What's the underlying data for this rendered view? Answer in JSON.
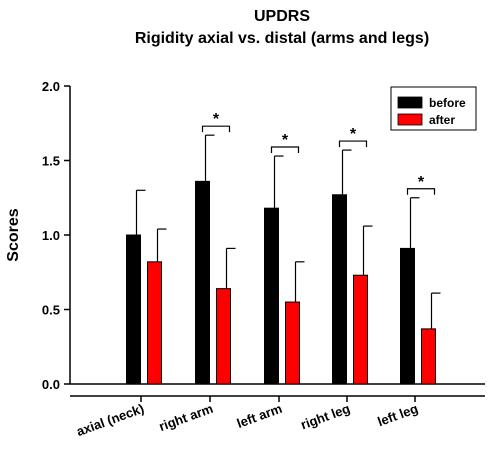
{
  "chart_data": {
    "type": "bar",
    "title": "UPDRS",
    "subtitle": "Rigidity axial vs. distal (arms and legs)",
    "ylabel": "Scores",
    "xlabel": "",
    "ylim": [
      0,
      2.0
    ],
    "yticks": [
      "0.0",
      "0.5",
      "1.0",
      "1.5",
      "2.0"
    ],
    "categories": [
      "axial (neck)",
      "right arm",
      "left arm",
      "right leg",
      "left leg"
    ],
    "series": [
      {
        "name": "before",
        "color": "#000000",
        "values": [
          1.0,
          1.36,
          1.18,
          1.27,
          0.91
        ],
        "errors": [
          0.3,
          0.31,
          0.35,
          0.3,
          0.34
        ]
      },
      {
        "name": "after",
        "color": "#ff0000",
        "values": [
          0.82,
          0.64,
          0.55,
          0.73,
          0.37
        ],
        "errors": [
          0.22,
          0.27,
          0.27,
          0.33,
          0.24
        ]
      }
    ],
    "significance": [
      {
        "category": "right arm",
        "label": "*"
      },
      {
        "category": "left arm",
        "label": "*"
      },
      {
        "category": "right leg",
        "label": "*"
      },
      {
        "category": "left leg",
        "label": "*"
      }
    ],
    "legend": {
      "position": "top-right"
    },
    "grid": false
  }
}
